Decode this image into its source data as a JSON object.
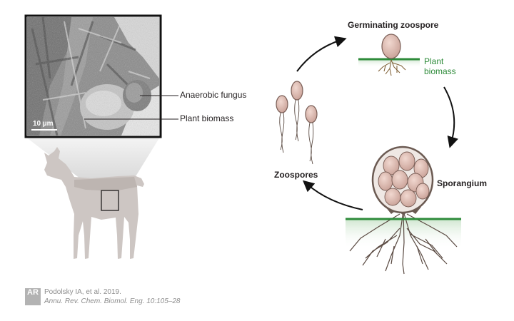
{
  "micrograph": {
    "labels": {
      "fungus": "Anaerobic fungus",
      "biomass": "Plant biomass"
    },
    "scale_bar": "10 µm"
  },
  "cycle": {
    "germinating": "Germinating zoospore",
    "plant_biomass_line1": "Plant",
    "plant_biomass_line2": "biomass",
    "sporangium": "Sporangium",
    "zoospores": "Zoospores"
  },
  "citation": {
    "logo_text": "AR",
    "line1": "Podolsky IA, et al. 2019.",
    "line2": "Annu. Rev. Chem. Biomol. Eng. 10:105–28"
  },
  "colors": {
    "goat": "#cdc6c3",
    "goat_shadow": "#bdb5b1",
    "spore_fill": "#d9b9b0",
    "spore_stroke": "#7a5e56",
    "hyphae": "#5a4a42",
    "ground_green": "#2e8b3a",
    "arrow": "#111111"
  }
}
